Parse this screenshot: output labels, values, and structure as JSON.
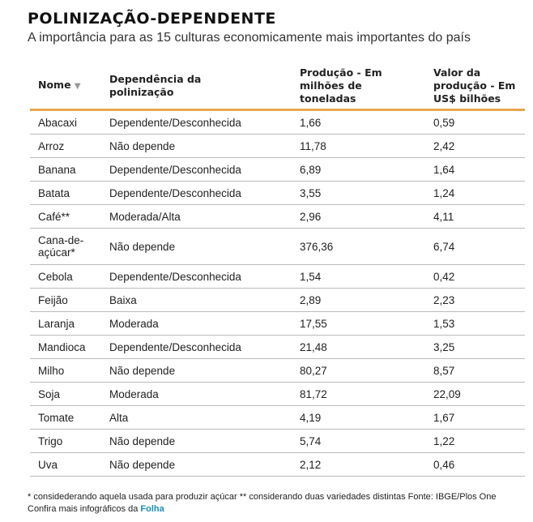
{
  "title": "POLINIZAÇÃO-DEPENDENTE",
  "subtitle": "A importância para as 15 culturas economicamente mais importantes do país",
  "headers": {
    "name": "Nome",
    "sort_icon": "▼",
    "dependency": "Dependência da polinização",
    "production": "Produção - Em milhões de toneladas",
    "value": "Valor da produção - Em US$ bilhões"
  },
  "accent_color": "#e8a44c",
  "rows": [
    [
      "Abacaxi",
      "Dependente/Desconhecida",
      "1,66",
      "0,59"
    ],
    [
      "Arroz",
      "Não depende",
      "11,78",
      "2,42"
    ],
    [
      "Banana",
      "Dependente/Desconhecida",
      "6,89",
      "1,64"
    ],
    [
      "Batata",
      "Dependente/Desconhecida",
      "3,55",
      "1,24"
    ],
    [
      "Café**",
      "Moderada/Alta",
      "2,96",
      "4,11"
    ],
    [
      "Cana-de-açúcar*",
      "Não depende",
      "376,36",
      "6,74"
    ],
    [
      "Cebola",
      "Dependente/Desconhecida",
      "1,54",
      "0,42"
    ],
    [
      "Feijão",
      "Baixa",
      "2,89",
      "2,23"
    ],
    [
      "Laranja",
      "Moderada",
      "17,55",
      "1,53"
    ],
    [
      "Mandioca",
      "Dependente/Desconhecida",
      "21,48",
      "3,25"
    ],
    [
      "Milho",
      "Não depende",
      "80,27",
      "8,57"
    ],
    [
      "Soja",
      "Moderada",
      "81,72",
      "22,09"
    ],
    [
      "Tomate",
      "Alta",
      "4,19",
      "1,67"
    ],
    [
      "Trigo",
      "Não depende",
      "5,74",
      "1,22"
    ],
    [
      "Uva",
      "Não depende",
      "2,12",
      "0,46"
    ]
  ],
  "footnote": "* considederando aquela usada para produzir açúcar ** considerando duas variedades distintas Fonte: IBGE/Plos One",
  "more_text": "Confira mais infográficos da ",
  "more_link": "Folha"
}
